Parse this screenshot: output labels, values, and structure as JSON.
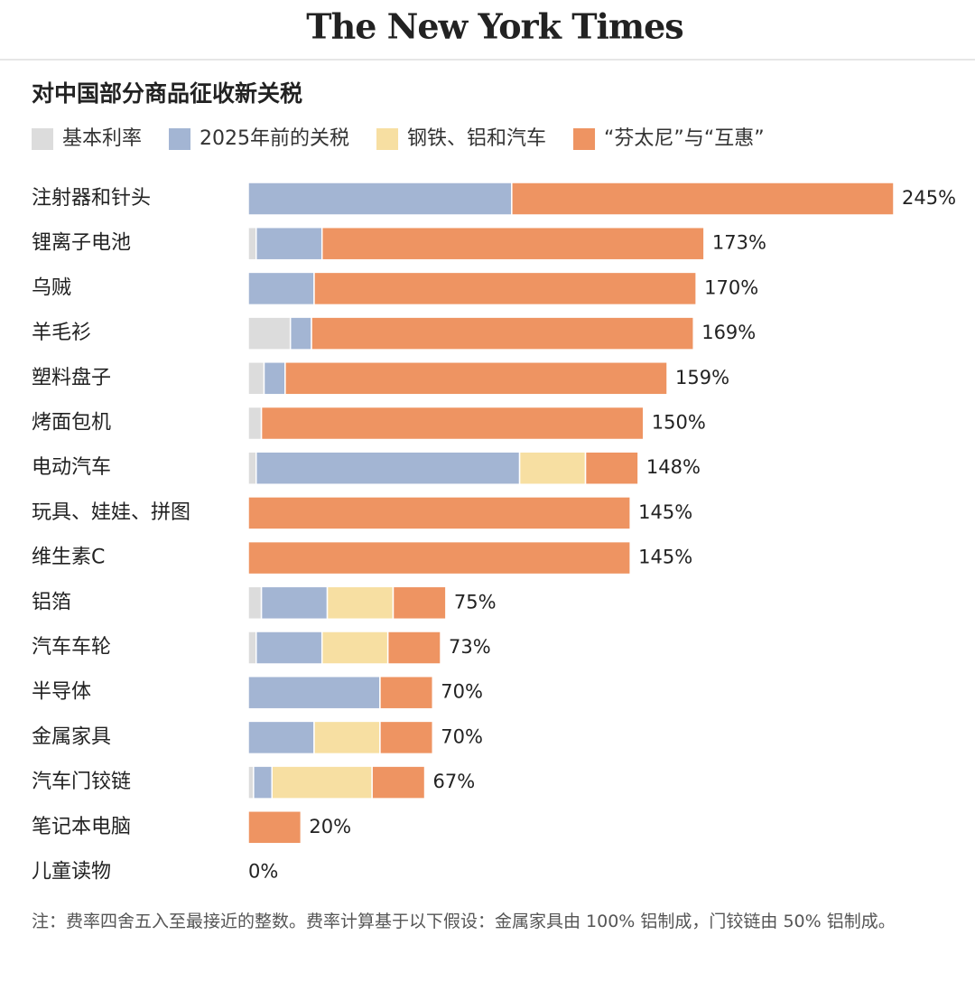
{
  "masthead": "The New York Times",
  "chart_data": {
    "type": "stacked_barh",
    "title": "对中国部分商品征收新关税",
    "categories": [
      "注射器和针头",
      "锂离子电池",
      "乌贼",
      "羊毛衫",
      "塑料盘子",
      "烤面包机",
      "电动汽车",
      "玩具、娃娃、拼图",
      "维生素C",
      "铝箔",
      "汽车车轮",
      "半导体",
      "金属家具",
      "汽车门铰链",
      "笔记本电脑",
      "儿童读物"
    ],
    "series": [
      {
        "name": "基本利率",
        "color": "#dcdcdc",
        "values": [
          0,
          3,
          0,
          16,
          6,
          5,
          3,
          0,
          0,
          5,
          3,
          0,
          0,
          2,
          0,
          0
        ]
      },
      {
        "name": "2025年前的关税",
        "color": "#a3b5d3",
        "values": [
          100,
          25,
          25,
          8,
          8,
          0,
          100,
          0,
          0,
          25,
          25,
          50,
          25,
          7,
          0,
          0
        ]
      },
      {
        "name": "钢铁、铝和汽车",
        "color": "#f7dfa2",
        "values": [
          0,
          0,
          0,
          0,
          0,
          0,
          25,
          0,
          0,
          25,
          25,
          0,
          25,
          38,
          0,
          0
        ]
      },
      {
        "name": "“芬太尼”与“互惠”",
        "color": "#ee9462",
        "values": [
          145,
          145,
          145,
          145,
          145,
          145,
          20,
          145,
          145,
          20,
          20,
          20,
          20,
          20,
          20,
          0
        ]
      }
    ],
    "totals": [
      245,
      173,
      170,
      169,
      159,
      150,
      148,
      145,
      145,
      75,
      73,
      70,
      70,
      67,
      20,
      0
    ],
    "value_labels": [
      "245%",
      "173%",
      "170%",
      "169%",
      "159%",
      "150%",
      "148%",
      "145%",
      "145%",
      "75%",
      "73%",
      "70%",
      "70%",
      "67%",
      "20%",
      "0%"
    ],
    "xlim": [
      0,
      245
    ],
    "note": "注：费率四舍五入至最接近的整数。费率计算基于以下假设：金属家具由 100% 铝制成，门铰链由 50% 铝制成。"
  }
}
